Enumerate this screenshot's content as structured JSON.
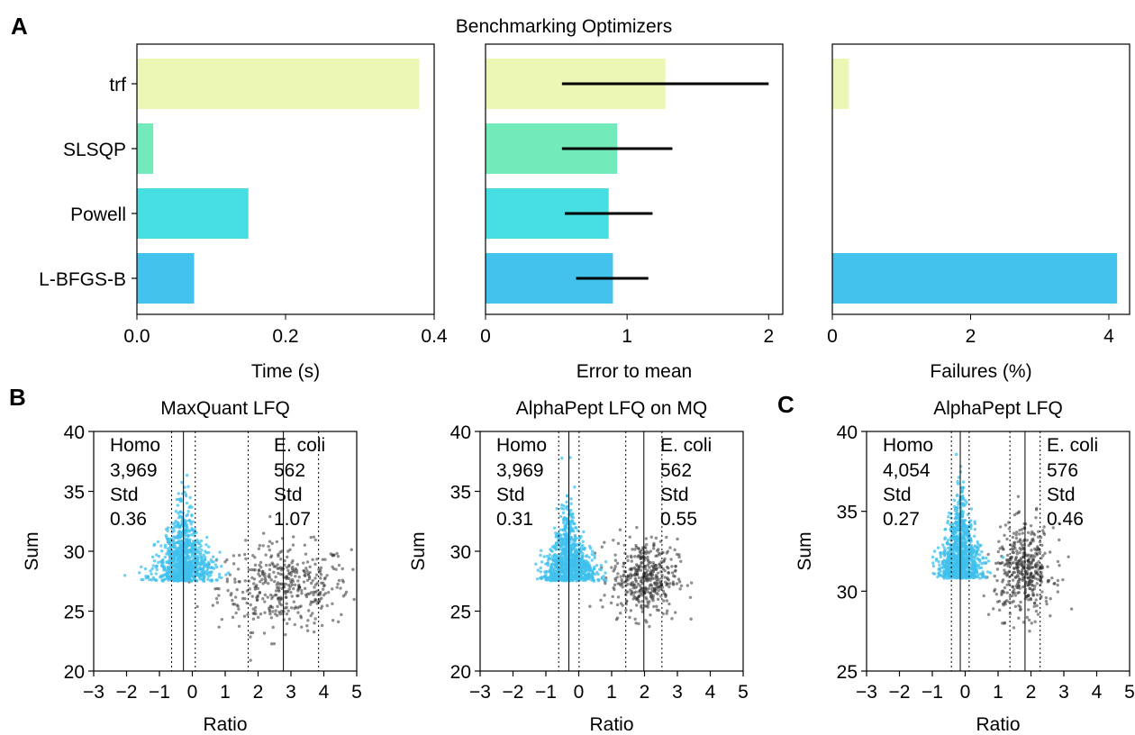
{
  "figure": {
    "panel_letters": [
      "A",
      "B",
      "C"
    ],
    "suptitle": "Benchmarking Optimizers"
  },
  "chart_data": [
    {
      "type": "bar",
      "orientation": "horizontal",
      "categories": [
        "trf",
        "SLSQP",
        "Powell",
        "L-BFGS-B"
      ],
      "values": [
        0.38,
        0.022,
        0.15,
        0.077
      ],
      "colors": [
        "#edf7b5",
        "#72eab9",
        "#46dee1",
        "#42c2ec"
      ],
      "xlabel": "Time (s)",
      "xlim": [
        0,
        0.4
      ],
      "xticks": [
        0.0,
        0.2,
        0.4
      ],
      "xtick_labels": [
        "0.0",
        "0.2",
        "0.4"
      ]
    },
    {
      "type": "bar",
      "orientation": "horizontal",
      "categories": [
        "trf",
        "SLSQP",
        "Powell",
        "L-BFGS-B"
      ],
      "values": [
        1.27,
        0.93,
        0.87,
        0.9
      ],
      "error_ranges": [
        [
          0.54,
          2.0
        ],
        [
          0.54,
          1.32
        ],
        [
          0.56,
          1.18
        ],
        [
          0.64,
          1.15
        ]
      ],
      "colors": [
        "#edf7b5",
        "#72eab9",
        "#46dee1",
        "#42c2ec"
      ],
      "xlabel": "Error to mean",
      "xlim": [
        0,
        2.1
      ],
      "xticks": [
        0,
        1,
        2
      ],
      "xtick_labels": [
        "0",
        "1",
        "2"
      ]
    },
    {
      "type": "bar",
      "orientation": "horizontal",
      "categories": [
        "trf",
        "SLSQP",
        "Powell",
        "L-BFGS-B"
      ],
      "values": [
        0.24,
        0,
        0,
        4.12
      ],
      "colors": [
        "#edf7b5",
        "#72eab9",
        "#46dee1",
        "#42c2ec"
      ],
      "xlabel": "Failures (%)",
      "xlim": [
        0,
        4.3
      ],
      "xticks": [
        0,
        2,
        4
      ],
      "xtick_labels": [
        "0",
        "2",
        "4"
      ]
    },
    {
      "type": "scatter",
      "title": "MaxQuant LFQ",
      "xlabel": "Ratio",
      "ylabel": "Sum",
      "xlim": [
        -3,
        5
      ],
      "ylim": [
        20,
        40
      ],
      "xticks": [
        -3,
        -2,
        -1,
        0,
        1,
        2,
        3,
        4,
        5
      ],
      "xtick_labels": [
        "−3",
        "−2",
        "−1",
        "0",
        "1",
        "2",
        "3",
        "4",
        "5"
      ],
      "yticks": [
        20,
        25,
        30,
        35,
        40
      ],
      "ytick_labels": [
        "20",
        "25",
        "30",
        "35",
        "40"
      ],
      "series": [
        {
          "name": "Homo",
          "color": "#3fc0ec",
          "count_label": "3,969",
          "std_label": "0.36",
          "center": -0.27,
          "center_line": -0.27,
          "std_lines": [
            -0.63,
            0.09
          ],
          "y_center": 27.5,
          "x_spread": 0.36,
          "y_spread": 1.9,
          "n": 950
        },
        {
          "name": "E. coli",
          "color": "#333333",
          "count_label": "562",
          "std_label": "1.07",
          "center": 2.8,
          "center_line": 2.77,
          "std_lines": [
            1.7,
            3.84
          ],
          "y_center": 27.0,
          "x_spread": 1.0,
          "y_spread": 1.8,
          "n": 420
        }
      ],
      "std_word": "Std"
    },
    {
      "type": "scatter",
      "title": "AlphaPept LFQ on MQ",
      "xlabel": "Ratio",
      "ylabel": "Sum",
      "xlim": [
        -3,
        5
      ],
      "ylim": [
        20,
        40
      ],
      "xticks": [
        -3,
        -2,
        -1,
        0,
        1,
        2,
        3,
        4,
        5
      ],
      "xtick_labels": [
        "−3",
        "−2",
        "−1",
        "0",
        "1",
        "2",
        "3",
        "4",
        "5"
      ],
      "yticks": [
        20,
        25,
        30,
        35,
        40
      ],
      "ytick_labels": [
        "20",
        "25",
        "30",
        "35",
        "40"
      ],
      "series": [
        {
          "name": "Homo",
          "color": "#3fc0ec",
          "count_label": "3,969",
          "std_label": "0.31",
          "center": -0.3,
          "center_line": -0.3,
          "std_lines": [
            -0.61,
            0.01
          ],
          "y_center": 27.5,
          "x_spread": 0.31,
          "y_spread": 1.8,
          "n": 950
        },
        {
          "name": "E. coli",
          "color": "#333333",
          "count_label": "562",
          "std_label": "0.55",
          "center": 2.0,
          "center_line": 1.98,
          "std_lines": [
            1.43,
            2.53
          ],
          "y_center": 27.8,
          "x_spread": 0.5,
          "y_spread": 1.6,
          "n": 420
        }
      ],
      "std_word": "Std"
    },
    {
      "type": "scatter",
      "title": "AlphaPept LFQ",
      "xlabel": "Ratio",
      "ylabel": "Sum",
      "xlim": [
        -3,
        5
      ],
      "ylim": [
        25,
        40
      ],
      "xticks": [
        -3,
        -2,
        -1,
        0,
        1,
        2,
        3,
        4,
        5
      ],
      "xtick_labels": [
        "−3",
        "−2",
        "−1",
        "0",
        "1",
        "2",
        "3",
        "4",
        "5"
      ],
      "yticks": [
        25,
        30,
        35,
        40
      ],
      "ytick_labels": [
        "25",
        "30",
        "35",
        "40"
      ],
      "series": [
        {
          "name": "Homo",
          "color": "#3fc0ec",
          "count_label": "4,054",
          "std_label": "0.27",
          "center": -0.15,
          "center_line": -0.15,
          "std_lines": [
            -0.42,
            0.12
          ],
          "y_center": 30.8,
          "x_spread": 0.27,
          "y_spread": 1.6,
          "n": 950
        },
        {
          "name": "E. coli",
          "color": "#333333",
          "count_label": "576",
          "std_label": "0.46",
          "center": 1.8,
          "center_line": 1.82,
          "std_lines": [
            1.36,
            2.28
          ],
          "y_center": 31.3,
          "x_spread": 0.45,
          "y_spread": 1.4,
          "n": 420
        }
      ],
      "std_word": "Std"
    }
  ]
}
